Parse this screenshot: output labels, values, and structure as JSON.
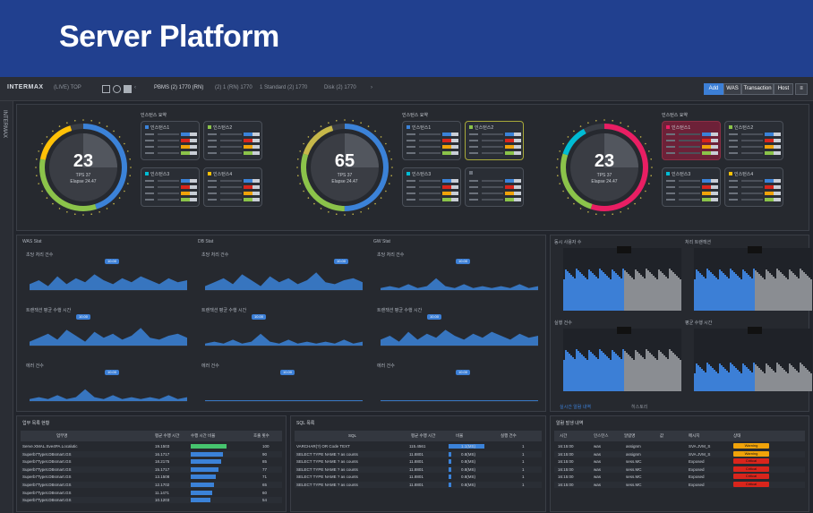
{
  "banner": {
    "title": "Server Platform"
  },
  "app": {
    "logo": "INTERMAX",
    "tabs": [
      "(LIVE) TOP",
      "PBMS (2) 1770 (RN)",
      "(2) 1 (RN) 1770",
      "1 Standard (2) 1770",
      "Disk (2) 1770"
    ],
    "right_buttons": [
      "Add",
      "WAS",
      "Transaction",
      "Host"
    ],
    "side_label": "INTERMAX"
  },
  "gauges": [
    {
      "value": "23",
      "sub1": "TPS 37",
      "sub2": "Elapse 24.47",
      "panel_title": "인스턴스 요약",
      "boxes": [
        {
          "name": "인스턴스1",
          "color": "#3b82d8"
        },
        {
          "name": "인스턴스2",
          "color": "#8bc34a"
        },
        {
          "name": "인스턴스3",
          "color": "#00bcd4"
        },
        {
          "name": "인스턴스4",
          "color": "#ffc107"
        }
      ]
    },
    {
      "value": "65",
      "sub1": "TPS 37",
      "sub2": "Elapse 24.47",
      "panel_title": "인스턴스 요약",
      "boxes": [
        {
          "name": "인스턴스1",
          "color": "#3b82d8"
        },
        {
          "name": "인스턴스2",
          "color": "#8bc34a"
        },
        {
          "name": "인스턴스3",
          "color": "#00bcd4"
        },
        {
          "name": "",
          "color": "#6b717b"
        }
      ]
    },
    {
      "value": "23",
      "sub1": "TPS 37",
      "sub2": "Elapse 24.47",
      "panel_title": "인스턴스 요약",
      "boxes": [
        {
          "name": "인스턴스1",
          "color": "#e91e63"
        },
        {
          "name": "인스턴스2",
          "color": "#8bc34a"
        },
        {
          "name": "인스턴스3",
          "color": "#00bcd4"
        },
        {
          "name": "인스턴스4",
          "color": "#ffc107"
        }
      ]
    }
  ],
  "mid": {
    "columns": [
      "WAS Stat",
      "DB Stat",
      "GW Stat"
    ],
    "rows": [
      "초당 처리 건수",
      "트랜잭션 평균 수행 시간",
      "에러 건수"
    ]
  },
  "right_charts": {
    "titles": [
      "동시 사용자 수",
      "처리 트랜잭션",
      "실행 건수",
      "평균 수행 시간"
    ],
    "tabs": [
      "실시간 알람 내역",
      "히스토리"
    ]
  },
  "bottom_left": {
    "title": "업무 목록 현황",
    "headers": [
      "업무명",
      "평균 수행 시간",
      "수행 시간 비율",
      "호출 횟수"
    ],
    "rows": [
      {
        "name": "Serve.XMAL.Sve4PA.Localutic",
        "time": "19.1503",
        "count": "100"
      },
      {
        "name": "Superb7Typet.DBsmart.GS",
        "time": "16.1717",
        "count": "90"
      },
      {
        "name": "Superb7Typet.DBsmart.GS",
        "time": "18.2175",
        "count": "85"
      },
      {
        "name": "Superb7Typet.DBsmart.GS",
        "time": "15.1717",
        "count": "77"
      },
      {
        "name": "Superb7Typet.DBsmart.GS",
        "time": "13.1508",
        "count": "71"
      },
      {
        "name": "Superb7Typet.DBsmart.GS",
        "time": "12.1702",
        "count": "65"
      },
      {
        "name": "Superb7Typet.DBsmart.GS",
        "time": "11.1471",
        "count": "60"
      },
      {
        "name": "Superb7Typet.DBsmart.GS",
        "time": "10.1203",
        "count": "54"
      }
    ]
  },
  "bottom_mid": {
    "title": "SQL 목록",
    "headers": [
      "SQL",
      "평균 수행 시간",
      "비율",
      "실행 건수"
    ],
    "rows": [
      {
        "name": "VARCHAR(?) OR Code TEXT",
        "time": "115.4561",
        "pct": "1.1(MS)",
        "n": "1"
      },
      {
        "name": "SELECT TYPE NAME ? as counts",
        "time": "11.8801",
        "pct": "0.8(MS)",
        "n": "1"
      },
      {
        "name": "SELECT TYPE NAME ? as counts",
        "time": "11.8801",
        "pct": "0.8(MS)",
        "n": "1"
      },
      {
        "name": "SELECT TYPE NAME ? as counts",
        "time": "11.8801",
        "pct": "0.8(MS)",
        "n": "1"
      },
      {
        "name": "SELECT TYPE NAME ? as counts",
        "time": "11.8801",
        "pct": "0.8(MS)",
        "n": "1"
      },
      {
        "name": "SELECT TYPE NAME ? as counts",
        "time": "11.8801",
        "pct": "0.8(MS)",
        "n": "1"
      }
    ]
  },
  "bottom_right": {
    "title": "알람 발생 내역",
    "headers": [
      "시간",
      "인스턴스",
      "알람명",
      "값",
      "메시지",
      "상태"
    ],
    "rows": [
      {
        "time": "16:15:00",
        "inst": "was",
        "name": "assignm",
        "msg": "SVA.JVM_S",
        "status": "Warning",
        "color": "#f0a30a"
      },
      {
        "time": "16:15:00",
        "inst": "was",
        "name": "assignm",
        "msg": "SVA.JVM_S",
        "status": "Warning",
        "color": "#f0a30a"
      },
      {
        "time": "16:15:00",
        "inst": "was",
        "name": "sess.MC",
        "msg": "Exposed",
        "status": "Critical",
        "color": "#d9251c"
      },
      {
        "time": "16:15:00",
        "inst": "was",
        "name": "sess.MC",
        "msg": "Exposed",
        "status": "Critical",
        "color": "#d9251c"
      },
      {
        "time": "16:15:00",
        "inst": "was",
        "name": "sess.MC",
        "msg": "Exposed",
        "status": "Critical",
        "color": "#d9251c"
      },
      {
        "time": "16:15:00",
        "inst": "was",
        "name": "sess.MC",
        "msg": "Exposed",
        "status": "Critical",
        "color": "#d9251c"
      }
    ]
  }
}
